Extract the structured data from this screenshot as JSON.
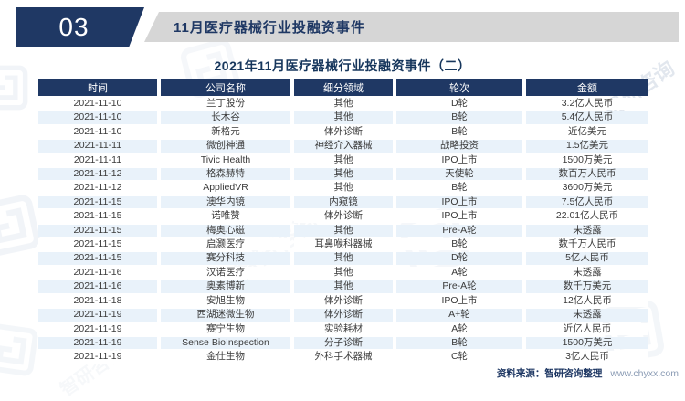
{
  "banner": {
    "section_number": "03",
    "section_title": "11月医疗器械行业投融资事件"
  },
  "table_title": "2021年11月医疗器械行业投融资事件（二）",
  "table": {
    "columns": [
      "时间",
      "公司名称",
      "细分领域",
      "轮次",
      "金额"
    ],
    "rows": [
      [
        "2021-11-10",
        "兰丁股份",
        "其他",
        "D轮",
        "3.2亿人民币"
      ],
      [
        "2021-11-10",
        "长木谷",
        "其他",
        "B轮",
        "5.4亿人民币"
      ],
      [
        "2021-11-10",
        "新格元",
        "体外诊断",
        "B轮",
        "近亿美元"
      ],
      [
        "2021-11-11",
        "微创神通",
        "神经介入器械",
        "战略投资",
        "1.5亿美元"
      ],
      [
        "2021-11-11",
        "Tivic Health",
        "其他",
        "IPO上市",
        "1500万美元"
      ],
      [
        "2021-11-12",
        "格森赫特",
        "其他",
        "天使轮",
        "数百万人民币"
      ],
      [
        "2021-11-12",
        "AppliedVR",
        "其他",
        "B轮",
        "3600万美元"
      ],
      [
        "2021-11-15",
        "澳华内镜",
        "内窥镜",
        "IPO上市",
        "7.5亿人民币"
      ],
      [
        "2021-11-15",
        "诺唯赞",
        "体外诊断",
        "IPO上市",
        "22.01亿人民币"
      ],
      [
        "2021-11-15",
        "梅奥心磁",
        "其他",
        "Pre-A轮",
        "未透露"
      ],
      [
        "2021-11-15",
        "启灏医疗",
        "耳鼻喉科器械",
        "B轮",
        "数千万人民币"
      ],
      [
        "2021-11-15",
        "赛分科技",
        "其他",
        "D轮",
        "5亿人民币"
      ],
      [
        "2021-11-16",
        "汉诺医疗",
        "其他",
        "A轮",
        "未透露"
      ],
      [
        "2021-11-16",
        "奥素博新",
        "其他",
        "Pre-A轮",
        "数千万美元"
      ],
      [
        "2021-11-18",
        "安旭生物",
        "体外诊断",
        "IPO上市",
        "12亿人民币"
      ],
      [
        "2021-11-19",
        "西湖迷微生物",
        "体外诊断",
        "A+轮",
        "未透露"
      ],
      [
        "2021-11-19",
        "赛宁生物",
        "实验耗材",
        "A轮",
        "近亿人民币"
      ],
      [
        "2021-11-19",
        "Sense BioInspection",
        "分子诊断",
        "B轮",
        "1500万美元"
      ],
      [
        "2021-11-19",
        "金仕生物",
        "外科手术器械",
        "C轮",
        "3亿人民币"
      ]
    ]
  },
  "footer": {
    "source_label": "资料来源：智研咨询整理",
    "source_url": "www.chyxx.com"
  },
  "watermark": {
    "text": "智研咨询"
  },
  "colors": {
    "navy": "#1F3864",
    "banner_gray": "#D6D6D6",
    "row_alt_blue": "#E9F2FA",
    "url_gray": "#8A9BB4"
  }
}
